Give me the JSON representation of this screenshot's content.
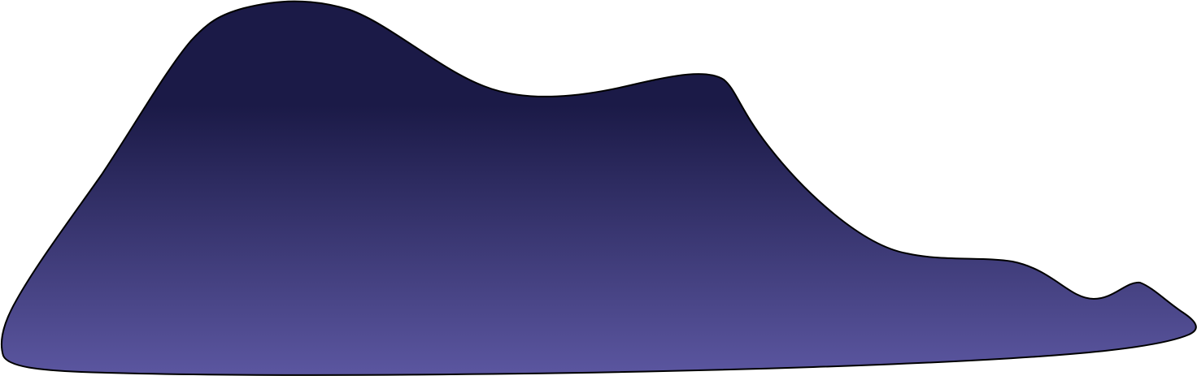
{
  "shape": {
    "icon": "mountain-silhouette",
    "colors": {
      "top": "#1b1a47",
      "bottom": "#5b56a0",
      "outline": "#000000",
      "background": "#ffffff"
    }
  }
}
